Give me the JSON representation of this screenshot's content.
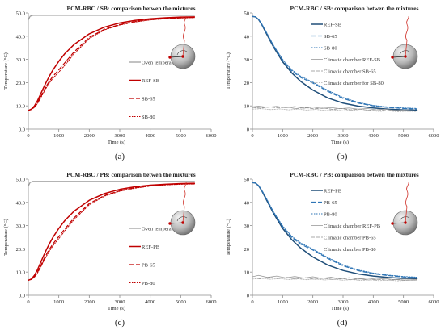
{
  "chart_data": [
    {
      "type": "line",
      "title": "PCM-RBC / SB: comparison betwen the mixtures",
      "xlabel": "Time (s)",
      "ylabel": "Temperature (°C)",
      "xlim": [
        0,
        6000
      ],
      "ylim": [
        0,
        50
      ],
      "xticks": [
        0,
        1000,
        2000,
        3000,
        4000,
        5000,
        6000
      ],
      "yticks": [
        0,
        10,
        20,
        30,
        40,
        50
      ],
      "ytick_labels": [
        "0.0",
        "10.0",
        "20.0",
        "30.0",
        "40.0",
        "50.0"
      ],
      "grid": false,
      "legend_position": "right",
      "caption": "(a)",
      "series": [
        {
          "name": "Oven temperature",
          "color": "#9a9a9a",
          "dash": "solid",
          "width": 1.2,
          "x": [
            0,
            60,
            150,
            300,
            1000,
            2000,
            3000,
            4000,
            5000,
            5450
          ],
          "y": [
            47.0,
            48.6,
            49.0,
            49.0,
            49.0,
            49.0,
            49.0,
            49.0,
            49.0,
            49.0
          ]
        },
        {
          "name": "REF-SB",
          "color": "#c00000",
          "dash": "solid",
          "width": 1.5,
          "x": [
            0,
            100,
            200,
            300,
            400,
            500,
            600,
            700,
            800,
            1000,
            1200,
            1500,
            2000,
            2500,
            3000,
            3500,
            4000,
            4500,
            5000,
            5450
          ],
          "y": [
            8.0,
            8.6,
            10.0,
            12.2,
            15.0,
            17.8,
            20.5,
            23.0,
            25.3,
            29.2,
            32.5,
            36.4,
            41.0,
            43.9,
            45.7,
            46.8,
            47.5,
            47.9,
            48.2,
            48.3
          ]
        },
        {
          "name": "SB-65",
          "color": "#c00000",
          "dash": "5,3",
          "width": 1.2,
          "x": [
            0,
            100,
            200,
            300,
            400,
            500,
            600,
            700,
            800,
            1000,
            1200,
            1500,
            2000,
            2500,
            3000,
            3500,
            4000,
            4500,
            5000,
            5450
          ],
          "y": [
            8.0,
            8.5,
            9.5,
            11.4,
            13.8,
            16.3,
            18.7,
            20.8,
            22.6,
            25.5,
            28.6,
            33.2,
            39.5,
            43.0,
            45.0,
            46.3,
            47.1,
            47.6,
            47.9,
            48.1
          ]
        },
        {
          "name": "SB-80",
          "color": "#c00000",
          "dash": "1.5,1.5",
          "width": 1.0,
          "x": [
            0,
            100,
            200,
            300,
            400,
            500,
            600,
            700,
            800,
            1000,
            1200,
            1500,
            2000,
            2500,
            3000,
            3500,
            4000,
            4500,
            5000,
            5450
          ],
          "y": [
            8.0,
            8.5,
            9.3,
            11.0,
            13.3,
            15.7,
            18.0,
            20.0,
            21.8,
            24.5,
            27.5,
            32.4,
            39.0,
            42.7,
            44.8,
            46.1,
            47.0,
            47.5,
            47.8,
            48.0
          ]
        }
      ]
    },
    {
      "type": "line",
      "title": "PCM-RBC / SB: comparison betwen the mixtures",
      "xlabel": "Time (s)",
      "ylabel": "Temperature (°C)",
      "xlim": [
        0,
        6000
      ],
      "ylim": [
        0,
        50
      ],
      "xticks": [
        0,
        1000,
        2000,
        3000,
        4000,
        5000,
        6000
      ],
      "yticks": [
        0,
        10,
        20,
        30,
        40,
        50
      ],
      "ytick_labels": [
        "0",
        "10",
        "20",
        "30",
        "40",
        "50"
      ],
      "grid": false,
      "legend_position": "right",
      "caption": "(b)",
      "series": [
        {
          "name": "REF-SB",
          "color": "#1f4e79",
          "dash": "solid",
          "width": 1.5,
          "x": [
            0,
            100,
            200,
            300,
            500,
            700,
            1000,
            1300,
            1600,
            2000,
            2500,
            3000,
            3500,
            4000,
            4500,
            5000,
            5450
          ],
          "y": [
            48.5,
            48.3,
            47.2,
            45.2,
            40.2,
            35.3,
            29.0,
            24.2,
            20.5,
            16.8,
            13.4,
            11.2,
            9.9,
            9.1,
            8.6,
            8.3,
            8.2
          ]
        },
        {
          "name": "SB-65",
          "color": "#2e75b6",
          "dash": "5,3",
          "width": 1.2,
          "x": [
            0,
            100,
            200,
            300,
            500,
            700,
            1000,
            1300,
            1600,
            2000,
            2500,
            3000,
            3500,
            4000,
            4500,
            5000,
            5450
          ],
          "y": [
            48.5,
            48.3,
            47.3,
            45.4,
            40.6,
            35.8,
            29.6,
            25.0,
            22.2,
            19.8,
            16.2,
            13.2,
            11.2,
            10.0,
            9.3,
            8.9,
            8.7
          ]
        },
        {
          "name": "SB-80",
          "color": "#2e75b6",
          "dash": "1.5,1.5",
          "width": 1.0,
          "x": [
            0,
            100,
            200,
            300,
            500,
            700,
            1000,
            1300,
            1600,
            2000,
            2500,
            3000,
            3500,
            4000,
            4500,
            5000,
            5450
          ],
          "y": [
            48.5,
            48.3,
            47.3,
            45.5,
            40.8,
            36.0,
            30.0,
            25.5,
            22.7,
            20.2,
            16.6,
            13.6,
            11.5,
            10.2,
            9.5,
            9.1,
            8.9
          ]
        },
        {
          "name": "Climatic chamber REF-SB",
          "color": "#9a9a9a",
          "dash": "solid",
          "width": 0.8,
          "x": [
            0,
            200,
            500,
            800,
            1100,
            1400,
            1700,
            2000,
            2300,
            2600,
            2900,
            3200,
            3500,
            3800,
            4100,
            4400,
            4700,
            5000,
            5450
          ],
          "y": [
            9.6,
            9.9,
            9.4,
            9.8,
            9.2,
            9.7,
            9.0,
            9.5,
            8.9,
            9.3,
            8.8,
            9.1,
            8.6,
            8.9,
            8.3,
            8.6,
            8.0,
            8.2,
            7.8
          ]
        },
        {
          "name": "Climatic chamber SB-65",
          "color": "#8c8c8c",
          "dash": "4,2",
          "width": 0.8,
          "x": [
            0,
            250,
            550,
            850,
            1150,
            1450,
            1750,
            2050,
            2350,
            2650,
            2950,
            3250,
            3550,
            3850,
            4150,
            4450,
            4750,
            5050,
            5450
          ],
          "y": [
            9.4,
            9.0,
            9.6,
            9.1,
            9.5,
            8.8,
            9.3,
            8.7,
            9.1,
            8.5,
            8.9,
            8.3,
            8.6,
            8.1,
            8.4,
            7.9,
            8.1,
            7.7,
            7.8
          ]
        },
        {
          "name": "Climatic chamber for SB-80",
          "color": "#b0b0b0",
          "dash": "1.5,1.5",
          "width": 0.8,
          "x": [
            0,
            300,
            600,
            900,
            1200,
            1500,
            1800,
            2100,
            2400,
            2700,
            3000,
            3300,
            3600,
            3900,
            4200,
            4500,
            4800,
            5100,
            5450
          ],
          "y": [
            8.6,
            8.8,
            8.4,
            8.7,
            8.3,
            8.6,
            8.2,
            8.5,
            8.0,
            8.3,
            7.9,
            8.2,
            7.8,
            8.0,
            7.6,
            7.9,
            7.5,
            7.7,
            7.6
          ]
        }
      ]
    },
    {
      "type": "line",
      "title": "PCM-RBC / PB: comparison betwen the mixtures",
      "xlabel": "Time (s)",
      "ylabel": "Temperature (°C)",
      "xlim": [
        0,
        6000
      ],
      "ylim": [
        0,
        50
      ],
      "xticks": [
        0,
        1000,
        2000,
        3000,
        4000,
        5000,
        6000
      ],
      "yticks": [
        0,
        10,
        20,
        30,
        40,
        50
      ],
      "ytick_labels": [
        "0.0",
        "10.0",
        "20.0",
        "30.0",
        "40.0",
        "50.0"
      ],
      "grid": false,
      "legend_position": "right",
      "caption": "(c)",
      "series": [
        {
          "name": "Oven temperature",
          "color": "#9a9a9a",
          "dash": "solid",
          "width": 1.2,
          "x": [
            0,
            60,
            150,
            300,
            1000,
            2000,
            3000,
            4000,
            5000,
            5450
          ],
          "y": [
            47.0,
            48.6,
            49.0,
            49.0,
            49.0,
            49.0,
            49.0,
            49.0,
            49.0,
            49.0
          ]
        },
        {
          "name": "REF-PB",
          "color": "#c00000",
          "dash": "solid",
          "width": 1.5,
          "x": [
            0,
            100,
            200,
            300,
            400,
            500,
            600,
            700,
            800,
            1000,
            1200,
            1500,
            2000,
            2500,
            3000,
            3500,
            4000,
            4500,
            5000,
            5450
          ],
          "y": [
            6.5,
            7.0,
            8.6,
            11.0,
            14.0,
            17.0,
            19.8,
            22.4,
            24.8,
            28.8,
            32.2,
            36.2,
            40.9,
            43.8,
            45.6,
            46.7,
            47.4,
            47.8,
            48.1,
            48.2
          ]
        },
        {
          "name": "PB-65",
          "color": "#c00000",
          "dash": "5,3",
          "width": 1.2,
          "x": [
            0,
            100,
            200,
            300,
            400,
            500,
            600,
            700,
            800,
            1000,
            1200,
            1500,
            2000,
            2500,
            3000,
            3500,
            4000,
            4500,
            5000,
            5450
          ],
          "y": [
            6.5,
            6.9,
            8.0,
            10.0,
            12.6,
            15.3,
            17.8,
            20.0,
            22.0,
            25.3,
            28.6,
            33.3,
            39.5,
            43.0,
            45.0,
            46.3,
            47.1,
            47.6,
            47.9,
            48.0
          ]
        },
        {
          "name": "PB-80",
          "color": "#c00000",
          "dash": "1.5,1.5",
          "width": 1.0,
          "x": [
            0,
            100,
            200,
            300,
            400,
            500,
            600,
            700,
            800,
            1000,
            1200,
            1500,
            2000,
            2500,
            3000,
            3500,
            4000,
            4500,
            5000,
            5450
          ],
          "y": [
            6.5,
            6.8,
            7.8,
            9.6,
            12.0,
            14.6,
            17.0,
            19.2,
            21.2,
            24.4,
            27.8,
            32.6,
            39.0,
            42.7,
            44.8,
            46.1,
            47.0,
            47.5,
            47.8,
            47.9
          ]
        }
      ]
    },
    {
      "type": "line",
      "title": "PCM-RBC / PB: comparison betwen the mixtures",
      "xlabel": "Time (s)",
      "ylabel": "Temperature (°C)",
      "xlim": [
        0,
        6000
      ],
      "ylim": [
        0,
        50
      ],
      "xticks": [
        0,
        1000,
        2000,
        3000,
        4000,
        5000,
        6000
      ],
      "yticks": [
        0,
        10,
        20,
        30,
        40,
        50
      ],
      "ytick_labels": [
        "0",
        "10",
        "20",
        "30",
        "40",
        "50"
      ],
      "grid": false,
      "legend_position": "right",
      "caption": "(d)",
      "series": [
        {
          "name": "REF-PB",
          "color": "#1f4e79",
          "dash": "solid",
          "width": 1.5,
          "x": [
            0,
            100,
            200,
            300,
            500,
            700,
            1000,
            1300,
            1600,
            2000,
            2500,
            3000,
            3500,
            4000,
            4500,
            5000,
            5450
          ],
          "y": [
            48.5,
            48.3,
            47.2,
            45.2,
            40.2,
            35.2,
            28.8,
            24.0,
            20.3,
            16.5,
            13.0,
            10.7,
            9.2,
            8.3,
            7.7,
            7.3,
            7.1
          ]
        },
        {
          "name": "PB-65",
          "color": "#2e75b6",
          "dash": "5,3",
          "width": 1.2,
          "x": [
            0,
            100,
            200,
            300,
            500,
            700,
            1000,
            1300,
            1600,
            2000,
            2500,
            3000,
            3500,
            4000,
            4500,
            5000,
            5450
          ],
          "y": [
            48.5,
            48.3,
            47.3,
            45.4,
            40.6,
            35.7,
            29.5,
            24.9,
            22.0,
            19.5,
            15.8,
            12.7,
            10.6,
            9.3,
            8.5,
            7.9,
            7.6
          ]
        },
        {
          "name": "PB-80",
          "color": "#2e75b6",
          "dash": "1.5,1.5",
          "width": 1.0,
          "x": [
            0,
            100,
            200,
            300,
            500,
            700,
            1000,
            1300,
            1600,
            2000,
            2500,
            3000,
            3500,
            4000,
            4500,
            5000,
            5450
          ],
          "y": [
            48.5,
            48.3,
            47.3,
            45.5,
            40.8,
            35.9,
            29.9,
            25.4,
            22.5,
            19.9,
            16.2,
            13.1,
            10.9,
            9.6,
            8.7,
            8.1,
            7.8
          ]
        },
        {
          "name": "Climatic chamber REF-PB",
          "color": "#9a9a9a",
          "dash": "solid",
          "width": 0.8,
          "x": [
            0,
            200,
            500,
            800,
            1100,
            1400,
            1700,
            2000,
            2300,
            2600,
            2900,
            3200,
            3500,
            3800,
            4100,
            4400,
            4700,
            5000,
            5450
          ],
          "y": [
            8.0,
            8.6,
            7.7,
            8.3,
            7.5,
            8.1,
            7.4,
            8.0,
            7.3,
            7.8,
            7.1,
            7.6,
            7.0,
            7.4,
            6.9,
            7.2,
            6.7,
            7.0,
            6.8
          ]
        },
        {
          "name": "Climatic chamber PB-65",
          "color": "#8c8c8c",
          "dash": "4,2",
          "width": 0.8,
          "x": [
            0,
            250,
            550,
            850,
            1150,
            1450,
            1750,
            2050,
            2350,
            2650,
            2950,
            3250,
            3550,
            3850,
            4150,
            4450,
            4750,
            5050,
            5450
          ],
          "y": [
            7.5,
            7.1,
            7.8,
            7.2,
            7.7,
            7.0,
            7.6,
            6.9,
            7.4,
            6.8,
            7.3,
            6.7,
            7.1,
            6.6,
            6.9,
            6.5,
            6.8,
            6.4,
            6.6
          ]
        },
        {
          "name": "Climatic chamber PB-80",
          "color": "#b0b0b0",
          "dash": "1.5,1.5",
          "width": 0.8,
          "x": [
            0,
            300,
            600,
            900,
            1200,
            1500,
            1800,
            2100,
            2400,
            2700,
            3000,
            3300,
            3600,
            3900,
            4200,
            4500,
            4800,
            5100,
            5450
          ],
          "y": [
            7.0,
            7.3,
            6.9,
            7.2,
            6.8,
            7.1,
            6.7,
            7.0,
            6.6,
            6.9,
            6.5,
            6.8,
            6.4,
            6.7,
            6.3,
            6.6,
            6.2,
            6.5,
            6.4
          ]
        }
      ]
    }
  ]
}
